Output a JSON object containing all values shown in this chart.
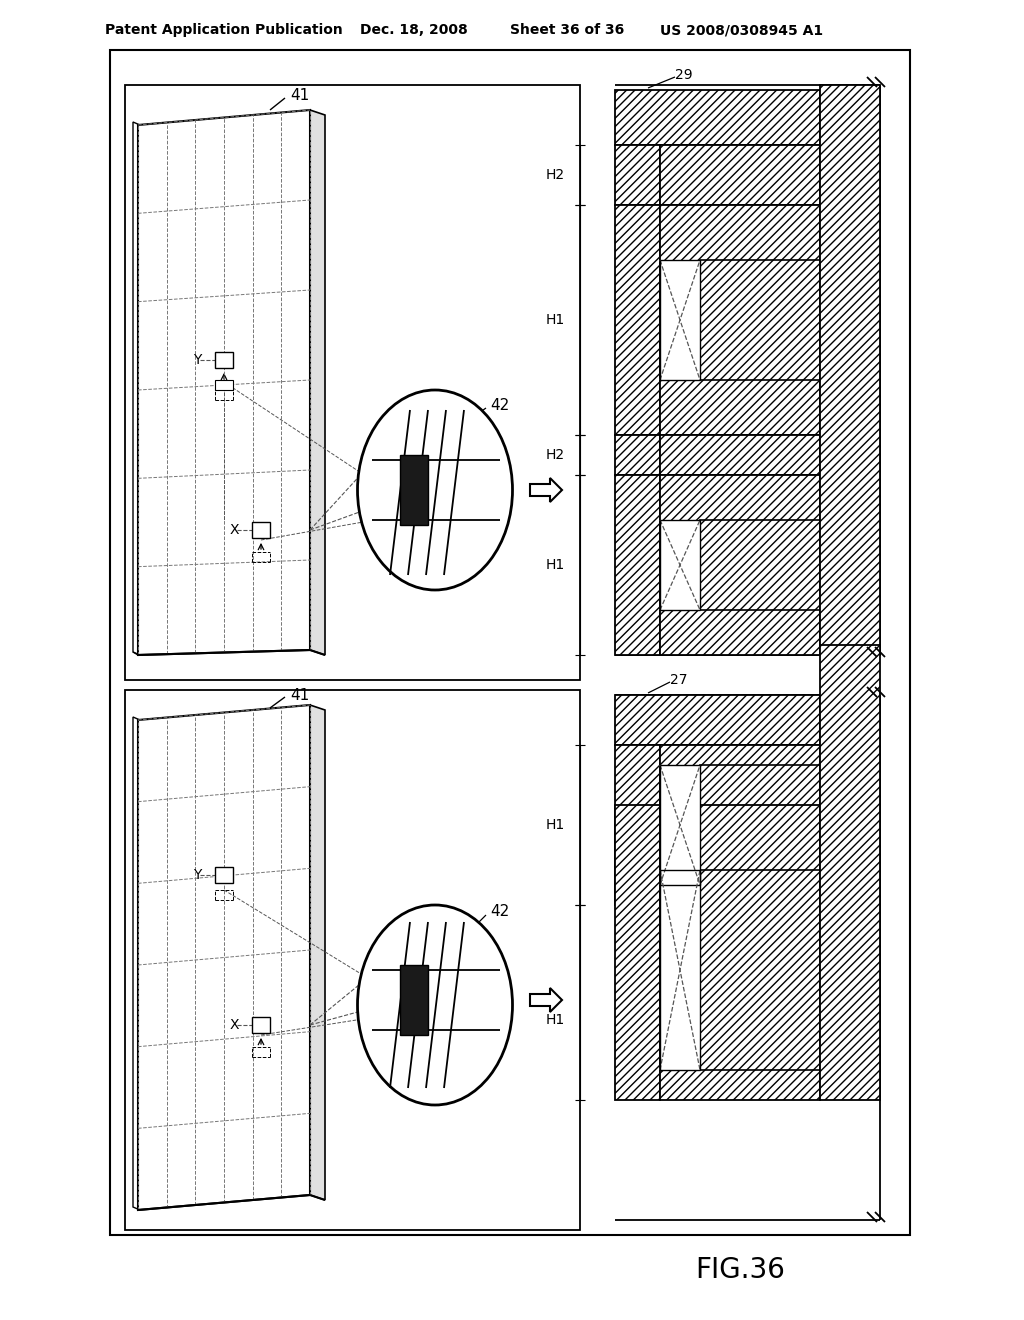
{
  "bg_color": "#ffffff",
  "line_color": "#000000",
  "header_text": "Patent Application Publication",
  "header_date": "Dec. 18, 2008",
  "header_sheet": "Sheet 36 of 36",
  "header_patent": "US 2008/0308945 A1",
  "figure_label": "FIG.36",
  "label_41": "41",
  "label_42": "42",
  "label_29": "29",
  "label_27": "27",
  "label_H1": "H1",
  "label_H2": "H2",
  "label_X": "X",
  "label_Y": "Y"
}
